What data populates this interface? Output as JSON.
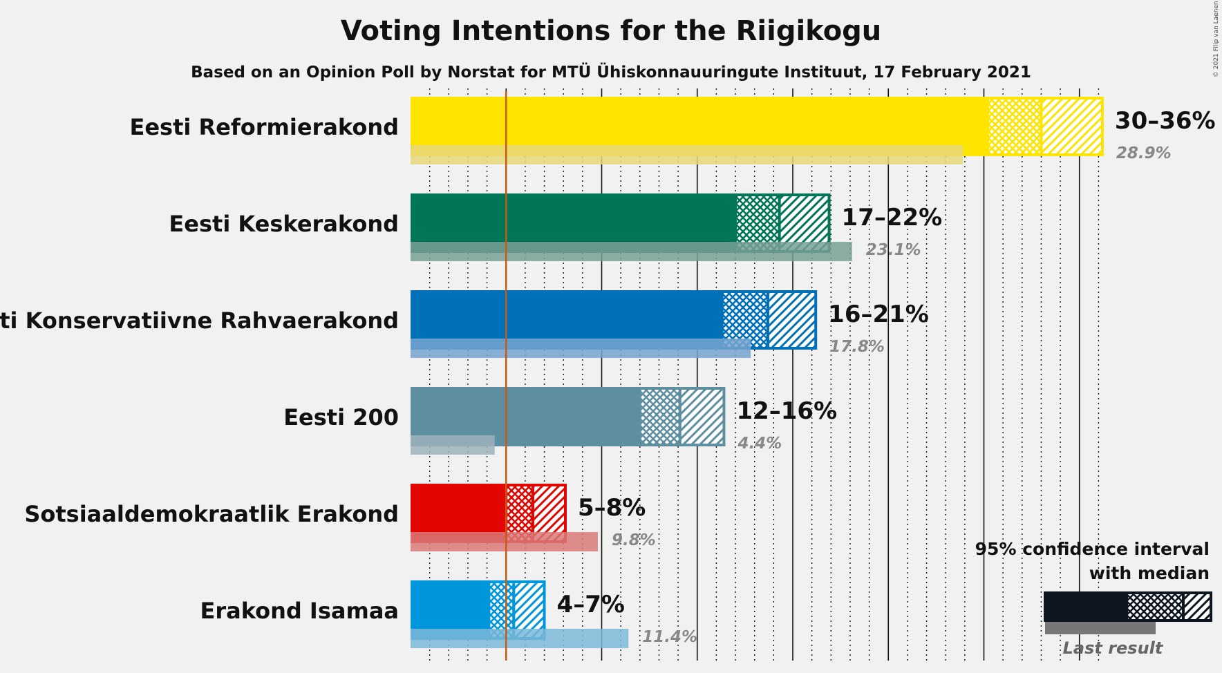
{
  "title": "Voting Intentions for the Riigikogu",
  "subtitle": "Based on an Opinion Poll by Norstat for MTÜ Ühiskonnauuringute Instituut, 17 February 2021",
  "copyright": "© 2021 Filip van Laenen",
  "legend": {
    "line1": "95% confidence interval",
    "line2": "with median",
    "last_result": "Last result",
    "color": "#0d1620"
  },
  "chart_data": {
    "type": "bar",
    "orientation": "horizontal",
    "xlim": [
      0,
      36
    ],
    "threshold": 5,
    "categories": [
      "Eesti Reformierakond",
      "Eesti Keskerakond",
      "Eesti Konservatiivne Rahvaerakond",
      "Eesti 200",
      "Sotsiaaldemokraatlik Erakond",
      "Erakond Isamaa"
    ],
    "series": [
      {
        "party": "Eesti Reformierakond",
        "range_label": "30–36%",
        "ci_low": 30.2,
        "median": 33.0,
        "ci_high": 36.2,
        "last_result": 28.9,
        "last_label": "28.9%",
        "color": "#ffe400",
        "pale": "#e6d77a"
      },
      {
        "party": "Eesti Keskerakond",
        "range_label": "17–22%",
        "ci_low": 17.0,
        "median": 19.3,
        "ci_high": 21.9,
        "last_result": 23.1,
        "last_label": "23.1%",
        "color": "#007557",
        "pale": "#78a094"
      },
      {
        "party": "Eesti Konservatiivne Rahvaerakond",
        "range_label": "16–21%",
        "ci_low": 16.3,
        "median": 18.7,
        "ci_high": 21.2,
        "last_result": 17.8,
        "last_label": "17.8%",
        "color": "#0070b9",
        "pale": "#77a5cf"
      },
      {
        "party": "Eesti 200",
        "range_label": "12–16%",
        "ci_low": 12.0,
        "median": 14.1,
        "ci_high": 16.4,
        "last_result": 4.4,
        "last_label": "4.4%",
        "color": "#5e8fa0",
        "pale": "#9cb2bb"
      },
      {
        "party": "Sotsiaaldemokraatlik Erakond",
        "range_label": "5–8%",
        "ci_low": 5.0,
        "median": 6.4,
        "ci_high": 8.1,
        "last_result": 9.8,
        "last_label": "9.8%",
        "color": "#e10600",
        "pale": "#d97a78"
      },
      {
        "party": "Erakond Isamaa",
        "range_label": "4–7%",
        "ci_low": 4.1,
        "median": 5.4,
        "ci_high": 7.0,
        "last_result": 11.4,
        "last_label": "11.4%",
        "color": "#0096dc",
        "pale": "#7bb8d8"
      }
    ]
  }
}
